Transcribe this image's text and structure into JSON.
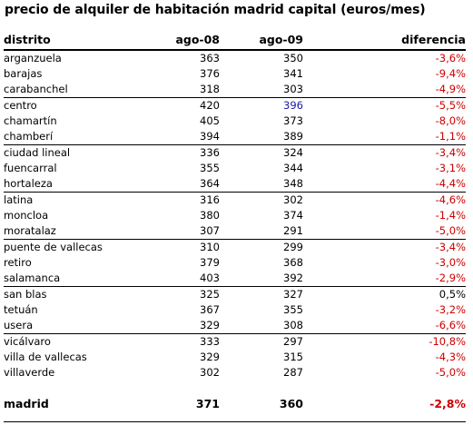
{
  "title": "precio de alquiler de habitación madrid capital (euros/mes)",
  "header": {
    "distrito": "distrito",
    "col1": "ago-08",
    "col2": "ago-09",
    "col3": "diferencia"
  },
  "rows": [
    {
      "distrito": "arganzuela",
      "ago08": "363",
      "ago09": "350",
      "dif": "-3,6%"
    },
    {
      "distrito": "barajas",
      "ago08": "376",
      "ago09": "341",
      "dif": "-9,4%"
    },
    {
      "distrito": "carabanchel",
      "ago08": "318",
      "ago09": "303",
      "dif": "-4,9%"
    },
    {
      "distrito": "centro",
      "ago08": "420",
      "ago09": "396",
      "dif": "-5,5%"
    },
    {
      "distrito": "chamartín",
      "ago08": "405",
      "ago09": "373",
      "dif": "-8,0%"
    },
    {
      "distrito": "chamberí",
      "ago08": "394",
      "ago09": "389",
      "dif": "-1,1%"
    },
    {
      "distrito": "ciudad lineal",
      "ago08": "336",
      "ago09": "324",
      "dif": "-3,4%"
    },
    {
      "distrito": "fuencarral",
      "ago08": "355",
      "ago09": "344",
      "dif": "-3,1%"
    },
    {
      "distrito": "hortaleza",
      "ago08": "364",
      "ago09": "348",
      "dif": "-4,4%"
    },
    {
      "distrito": "latina",
      "ago08": "316",
      "ago09": "302",
      "dif": "-4,6%"
    },
    {
      "distrito": "moncloa",
      "ago08": "380",
      "ago09": "374",
      "dif": "-1,4%"
    },
    {
      "distrito": "moratalaz",
      "ago08": "307",
      "ago09": "291",
      "dif": "-5,0%"
    },
    {
      "distrito": "puente de vallecas",
      "ago08": "310",
      "ago09": "299",
      "dif": "-3,4%"
    },
    {
      "distrito": "retiro",
      "ago08": "379",
      "ago09": "368",
      "dif": "-3,0%"
    },
    {
      "distrito": "salamanca",
      "ago08": "403",
      "ago09": "392",
      "dif": "-2,9%"
    },
    {
      "distrito": "san blas",
      "ago08": "325",
      "ago09": "327",
      "dif": "0,5%"
    },
    {
      "distrito": "tetuán",
      "ago08": "367",
      "ago09": "355",
      "dif": "-3,2%"
    },
    {
      "distrito": "usera",
      "ago08": "329",
      "ago09": "308",
      "dif": "-6,6%"
    },
    {
      "distrito": "vicálvaro",
      "ago08": "333",
      "ago09": "297",
      "dif": "-10,8%"
    },
    {
      "distrito": "villa de vallecas",
      "ago08": "329",
      "ago09": "315",
      "dif": "-4,3%"
    },
    {
      "distrito": "villaverde",
      "ago08": "302",
      "ago09": "287",
      "dif": "-5,0%"
    }
  ],
  "total": {
    "distrito": "madrid",
    "ago08": "371",
    "ago09": "360",
    "dif": "-2,8%"
  },
  "colors": {
    "negative": "#cc0000",
    "highlight": "#1a1aa6",
    "text": "#000000"
  }
}
